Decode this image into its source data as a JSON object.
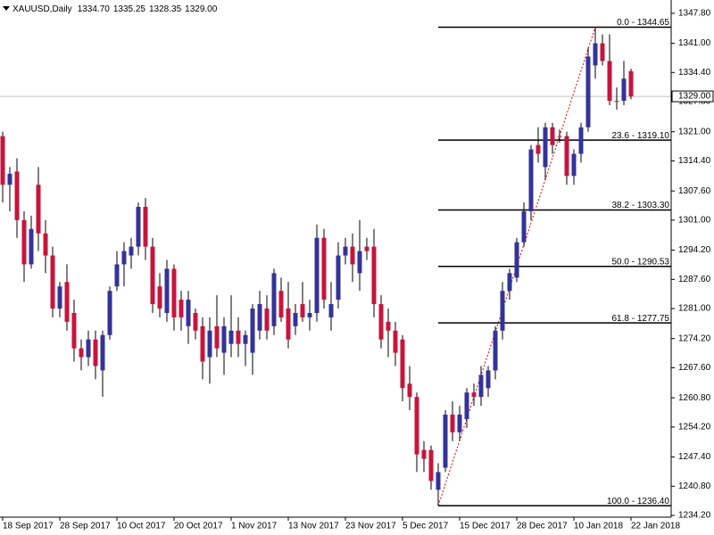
{
  "chart_data": {
    "type": "candlestick",
    "header": {
      "title": "XAUUSD,Daily",
      "ohlc": [
        {
          "value": 1334.7,
          "label": "1334.70"
        },
        {
          "value": 1335.25,
          "label": "1335.25"
        },
        {
          "value": 1328.35,
          "label": "1328.35"
        },
        {
          "value": 1329,
          "label": "1329.00"
        }
      ]
    },
    "categories": [
      "18 Sep 2017",
      null,
      null,
      null,
      null,
      null,
      null,
      null,
      "28 Sep 2017",
      null,
      null,
      null,
      null,
      null,
      null,
      null,
      "10 Oct 2017",
      null,
      null,
      null,
      null,
      null,
      null,
      null,
      "20 Oct 2017",
      null,
      null,
      null,
      null,
      null,
      null,
      null,
      "1 Nov 2017",
      null,
      null,
      null,
      null,
      null,
      null,
      null,
      "13 Nov 2017",
      null,
      null,
      null,
      null,
      null,
      null,
      null,
      "23 Nov 2017",
      null,
      null,
      null,
      null,
      null,
      null,
      null,
      "5 Dec 2017",
      null,
      null,
      null,
      null,
      null,
      null,
      null,
      "15 Dec 2017",
      null,
      null,
      null,
      null,
      null,
      null,
      null,
      "28 Dec 2017",
      null,
      null,
      null,
      null,
      null,
      null,
      null,
      "10 Jan 2018",
      null,
      null,
      null,
      null,
      null,
      null,
      null,
      "22 Jan 2018"
    ],
    "open": [
      1320,
      1309,
      1312,
      1301,
      1291,
      1309,
      1298,
      1293,
      1281,
      1287,
      1280,
      1272,
      1270,
      1274,
      1267,
      1275,
      1286,
      1291,
      1293,
      1295,
      1304,
      1295,
      1286,
      1280,
      1290,
      1283,
      1277,
      1280,
      1277,
      1270,
      1277,
      1271,
      1273,
      1276,
      1273,
      1271,
      1276,
      1281,
      1277,
      1285,
      1281,
      1277,
      1282,
      1279,
      1280,
      1297,
      1279,
      1283,
      1293,
      1295,
      1289,
      1295,
      1295,
      1282,
      1278,
      1276,
      1274,
      1264,
      1261,
      1249,
      1249,
      1240,
      1245,
      1257,
      1253,
      1256,
      1262,
      1261,
      1263,
      1267,
      1276,
      1285,
      1288,
      1296,
      1303,
      1318,
      1313,
      1322,
      1320,
      1320,
      1311,
      1316,
      1322,
      1336,
      1341,
      1337,
      1328,
      1328,
      1334.7
    ],
    "high": [
      1321,
      1313,
      1315,
      1303,
      1302,
      1313,
      1301,
      1295,
      1287,
      1291,
      1283,
      1274,
      1276,
      1276,
      1276,
      1286,
      1294,
      1296,
      1297,
      1305,
      1306,
      1297,
      1289,
      1292,
      1291,
      1285,
      1285,
      1281,
      1279,
      1279,
      1284,
      1279,
      1284,
      1279,
      1276,
      1282,
      1285,
      1284,
      1290,
      1288,
      1287,
      1282,
      1287,
      1283,
      1300,
      1299,
      1287,
      1296,
      1297,
      1298,
      1301,
      1297,
      1299,
      1284,
      1281,
      1278,
      1275,
      1268,
      1262,
      1251,
      1250,
      1246,
      1258,
      1260,
      1259,
      1263,
      1264,
      1268,
      1268,
      1277,
      1287,
      1290,
      1297,
      1305,
      1318,
      1322,
      1323,
      1323,
      1321.5,
      1321,
      1317,
      1323,
      1340,
      1344.65,
      1343,
      1343,
      1331,
      1337,
      1335.25
    ],
    "low": [
      1305,
      1303,
      1297,
      1287,
      1290,
      1294,
      1289,
      1279,
      1279,
      1276,
      1269,
      1267,
      1268,
      1265,
      1261,
      1274,
      1285,
      1286,
      1290,
      1293,
      1292,
      1280,
      1279,
      1278,
      1276,
      1276,
      1273,
      1274,
      1265,
      1264,
      1270,
      1266,
      1270,
      1270,
      1268,
      1266,
      1274,
      1274,
      1275,
      1278,
      1272,
      1275,
      1278,
      1276,
      1278,
      1281,
      1276,
      1281,
      1291,
      1287,
      1285,
      1292,
      1279,
      1272,
      1270,
      1268,
      1260,
      1258,
      1244,
      1244,
      1240,
      1236.4,
      1244,
      1251,
      1251,
      1254,
      1259,
      1259,
      1261,
      1265,
      1274,
      1283,
      1287,
      1295,
      1301,
      1314,
      1310,
      1316,
      1318.5,
      1309,
      1309,
      1314,
      1321,
      1333,
      1336,
      1327,
      1326,
      1327,
      1328.35
    ],
    "close": [
      1309,
      1311.5,
      1301,
      1291,
      1299,
      1298,
      1293,
      1281,
      1286,
      1278,
      1272,
      1270,
      1274,
      1268,
      1275,
      1285,
      1291,
      1294,
      1295,
      1304,
      1295,
      1282,
      1281,
      1290,
      1279,
      1279,
      1283,
      1276,
      1269,
      1276,
      1272,
      1277,
      1276,
      1273,
      1275,
      1281,
      1282,
      1276,
      1289,
      1279,
      1274,
      1280,
      1279,
      1280,
      1297,
      1283,
      1282,
      1293,
      1295,
      1291,
      1294,
      1294,
      1282,
      1274,
      1276,
      1271,
      1263,
      1261,
      1248,
      1247,
      1242,
      1244,
      1257,
      1253,
      1257,
      1262,
      1261,
      1266,
      1267,
      1276,
      1285,
      1289,
      1296,
      1303,
      1317,
      1316,
      1322,
      1318,
      1319.8,
      1311,
      1316,
      1322,
      1338,
      1341,
      1337,
      1328,
      1328,
      1333,
      1329
    ],
    "up_color": "#333399",
    "down_color": "#c8143c",
    "ylim": [
      1233.8,
      1350.8
    ],
    "yticks": [
      {
        "value": 1347.8,
        "label": "1347.80"
      },
      {
        "value": 1341,
        "label": "1341.00"
      },
      {
        "value": 1334.4,
        "label": "1334.40"
      },
      {
        "value": 1327.8,
        "label": "1327.80"
      },
      {
        "value": 1321,
        "label": "1321.00"
      },
      {
        "value": 1314.4,
        "label": "1314.40"
      },
      {
        "value": 1307.6,
        "label": "1307.60"
      },
      {
        "value": 1301,
        "label": "1301.00"
      },
      {
        "value": 1294.2,
        "label": "1294.20"
      },
      {
        "value": 1287.6,
        "label": "1287.60"
      },
      {
        "value": 1281,
        "label": "1281.00"
      },
      {
        "value": 1274.2,
        "label": "1274.20"
      },
      {
        "value": 1267.6,
        "label": "1267.60"
      },
      {
        "value": 1260.8,
        "label": "1260.80"
      },
      {
        "value": 1254.2,
        "label": "1254.20"
      },
      {
        "value": 1247.4,
        "label": "1247.40"
      },
      {
        "value": 1240.8,
        "label": "1240.80"
      },
      {
        "value": 1234.2,
        "label": "1234.20"
      }
    ],
    "last_price": {
      "value": 1329,
      "label": "1329.00"
    },
    "fib_levels": [
      {
        "value": 1344.65,
        "label": "0.0 - 1344.65"
      },
      {
        "value": 1319.1,
        "label": "23.6 - 1319.10"
      },
      {
        "value": 1303.3,
        "label": "38.2 - 1303.30"
      },
      {
        "value": 1290.53,
        "label": "50.0 - 1290.53"
      },
      {
        "value": 1277.75,
        "label": "61.8 - 1277.75"
      },
      {
        "value": 1236.4,
        "label": "100.0 - 1236.40"
      }
    ],
    "grid": false
  }
}
